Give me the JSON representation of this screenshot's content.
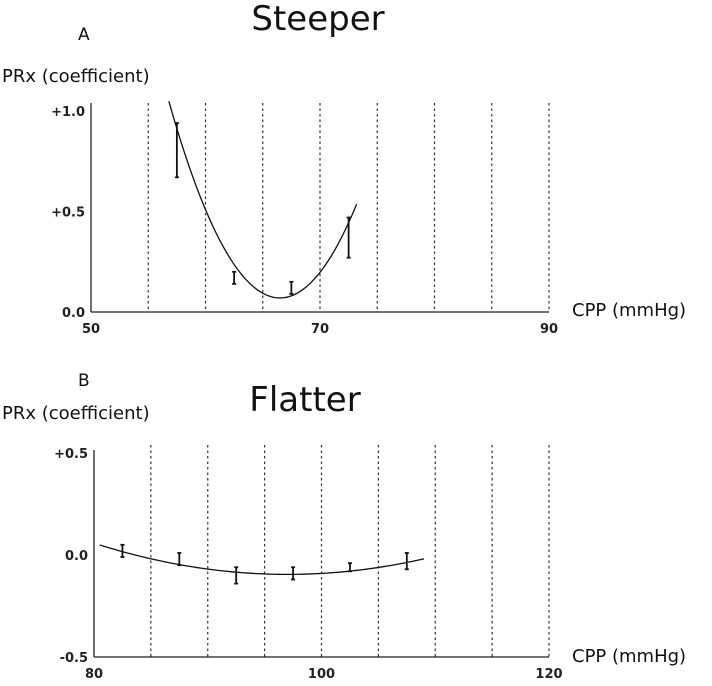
{
  "chart_data": [
    {
      "type": "line",
      "panel_letter": "A",
      "title": "Steeper",
      "ylabel": "PRx (coefficient)",
      "xlabel": "CPP (mmHg)",
      "xlim": [
        50,
        90
      ],
      "ylim": [
        0.0,
        1.0
      ],
      "x_ticks": [
        {
          "value": 50,
          "label": "50"
        },
        {
          "value": 70,
          "label": "70"
        },
        {
          "value": 90,
          "label": "90"
        }
      ],
      "y_ticks": [
        {
          "value": 1.0,
          "label": "+1.0"
        },
        {
          "value": 0.5,
          "label": "+0.5"
        },
        {
          "value": 0.0,
          "label": "0.0"
        }
      ],
      "grid_x": [
        55,
        60,
        65,
        70,
        75,
        80,
        85,
        90
      ],
      "points": [
        {
          "x": 57.5,
          "y": 0.8,
          "lo": 0.67,
          "hi": 0.94
        },
        {
          "x": 62.5,
          "y": 0.17,
          "lo": 0.14,
          "hi": 0.2
        },
        {
          "x": 67.5,
          "y": 0.12,
          "lo": 0.09,
          "hi": 0.15
        },
        {
          "x": 72.5,
          "y": 0.37,
          "lo": 0.27,
          "hi": 0.47
        }
      ],
      "fit": {
        "x_from": 56.8,
        "x_to": 73.2,
        "vertex_x": 66.5,
        "vertex_y": 0.07,
        "a": 0.0104
      }
    },
    {
      "type": "line",
      "panel_letter": "B",
      "title": "Flatter",
      "ylabel": "PRx (coefficient)",
      "xlabel": "CPP (mmHg)",
      "xlim": [
        80,
        120
      ],
      "ylim": [
        -0.5,
        0.5
      ],
      "x_ticks": [
        {
          "value": 80,
          "label": "80"
        },
        {
          "value": 100,
          "label": "100"
        },
        {
          "value": 120,
          "label": "120"
        }
      ],
      "y_ticks": [
        {
          "value": 0.5,
          "label": "+0.5"
        },
        {
          "value": 0.0,
          "label": "0.0"
        },
        {
          "value": -0.5,
          "label": "-0.5"
        }
      ],
      "grid_x": [
        85,
        90,
        95,
        100,
        105,
        110,
        115,
        120
      ],
      "points": [
        {
          "x": 82.5,
          "y": 0.02,
          "lo": -0.01,
          "hi": 0.05
        },
        {
          "x": 87.5,
          "y": -0.02,
          "lo": -0.05,
          "hi": 0.01
        },
        {
          "x": 92.5,
          "y": -0.1,
          "lo": -0.14,
          "hi": -0.06
        },
        {
          "x": 97.5,
          "y": -0.09,
          "lo": -0.12,
          "hi": -0.06
        },
        {
          "x": 102.5,
          "y": -0.06,
          "lo": -0.08,
          "hi": -0.04
        },
        {
          "x": 107.5,
          "y": -0.03,
          "lo": -0.07,
          "hi": 0.01
        }
      ],
      "fit": {
        "x_from": 80.5,
        "x_to": 109.0,
        "vertex_x": 97.0,
        "vertex_y": -0.095,
        "a": 0.00053
      }
    }
  ]
}
